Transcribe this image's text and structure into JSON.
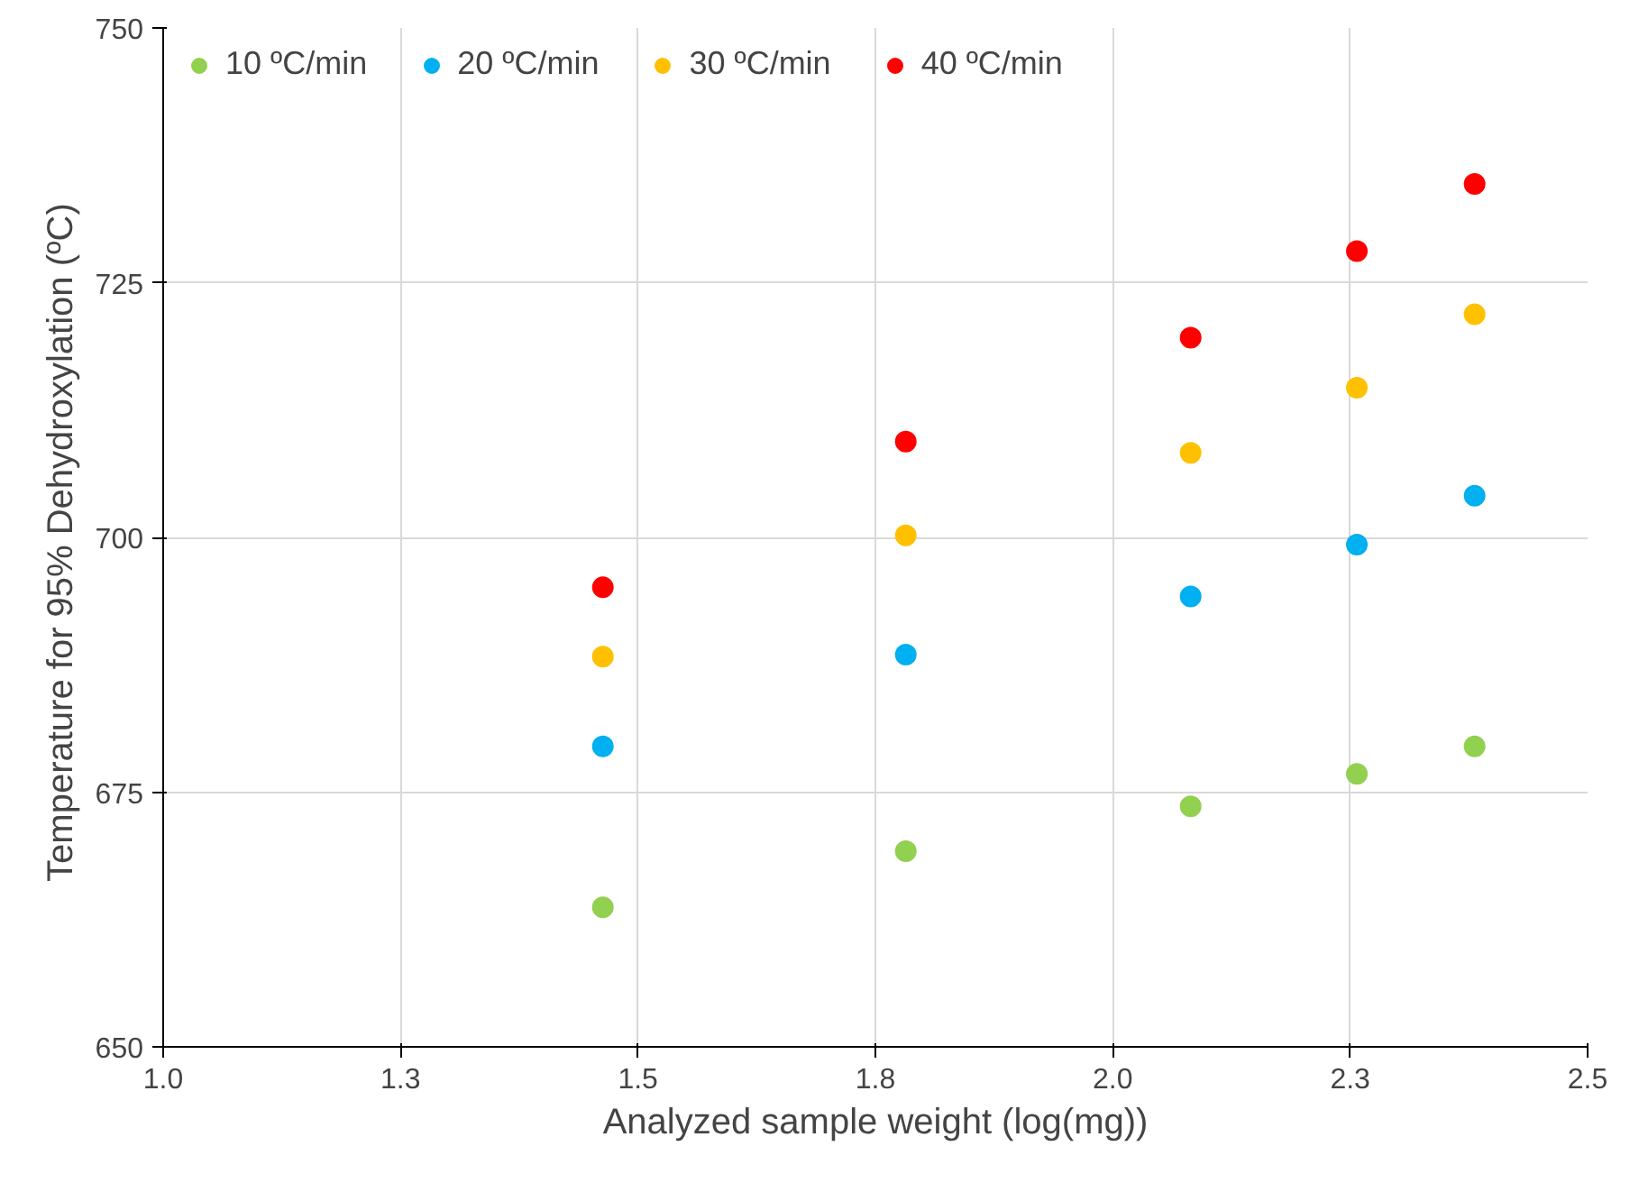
{
  "chart_data": {
    "type": "scatter",
    "xlabel": "Analyzed sample weight (log(mg))",
    "ylabel": "Temperature for 95% Dehydroxylation  (ºC)",
    "x": [
      1.463,
      1.782,
      2.082,
      2.257,
      2.381
    ],
    "series": [
      {
        "name": "10 ºC/min",
        "color": "#92d050",
        "values": [
          663.7,
          669.2,
          673.6,
          676.8,
          679.5
        ]
      },
      {
        "name": "20 ºC/min",
        "color": "#00b0f0",
        "values": [
          679.5,
          688.5,
          694.2,
          699.3,
          704.1
        ]
      },
      {
        "name": "30 ºC/min",
        "color": "#ffc000",
        "values": [
          688.3,
          700.2,
          708.3,
          714.7,
          721.9
        ]
      },
      {
        "name": "40 ºC/min",
        "color": "#ff0000",
        "values": [
          695.1,
          709.4,
          719.6,
          728.1,
          734.7
        ]
      }
    ],
    "xlim": [
      1.0,
      2.5
    ],
    "xticks": [
      {
        "value": 1.0,
        "label": "1.0"
      },
      {
        "value": 1.25,
        "label": "1.3"
      },
      {
        "value": 1.5,
        "label": "1.5"
      },
      {
        "value": 1.75,
        "label": "1.8"
      },
      {
        "value": 2.0,
        "label": "2.0"
      },
      {
        "value": 2.25,
        "label": "2.3"
      },
      {
        "value": 2.5,
        "label": "2.5"
      }
    ],
    "ylim": [
      650,
      750
    ],
    "yticks": [
      650,
      675,
      700,
      725,
      750
    ],
    "grid": true,
    "legend": "top left",
    "marker": "circle"
  }
}
